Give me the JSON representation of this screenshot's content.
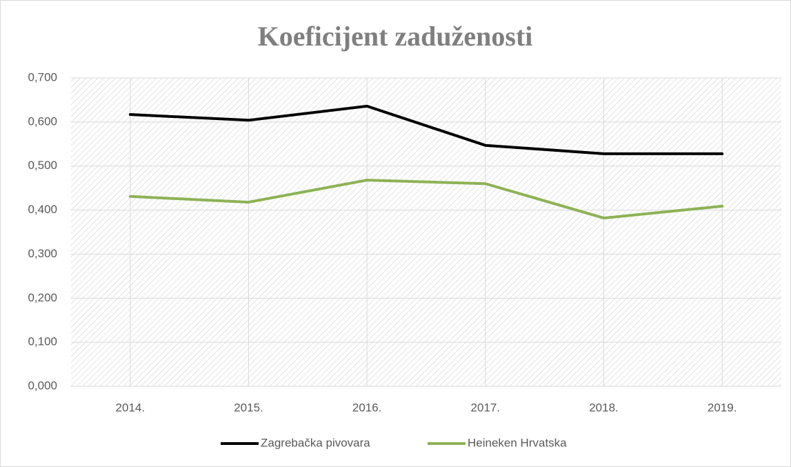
{
  "chart_data": {
    "type": "line",
    "title": "Koeficijent zaduženosti",
    "categories": [
      "2014.",
      "2015.",
      "2016.",
      "2017.",
      "2018.",
      "2019."
    ],
    "series": [
      {
        "name": "Zagrebačka pivovara",
        "color": "#000000",
        "values": [
          0.617,
          0.604,
          0.636,
          0.547,
          0.528,
          0.528
        ]
      },
      {
        "name": "Heineken Hrvatska",
        "color": "#8db255",
        "values": [
          0.431,
          0.418,
          0.468,
          0.46,
          0.382,
          0.409
        ]
      }
    ],
    "ylim": [
      0,
      0.7
    ],
    "yticks": [
      {
        "value": 0,
        "label": "0,000"
      },
      {
        "value": 0.1,
        "label": "0,100"
      },
      {
        "value": 0.2,
        "label": "0,200"
      },
      {
        "value": 0.3,
        "label": "0,300"
      },
      {
        "value": 0.4,
        "label": "0,400"
      },
      {
        "value": 0.5,
        "label": "0,500"
      },
      {
        "value": 0.6,
        "label": "0,600"
      },
      {
        "value": 0.7,
        "label": "0,700"
      }
    ],
    "grid": true,
    "legend": "bottom"
  }
}
